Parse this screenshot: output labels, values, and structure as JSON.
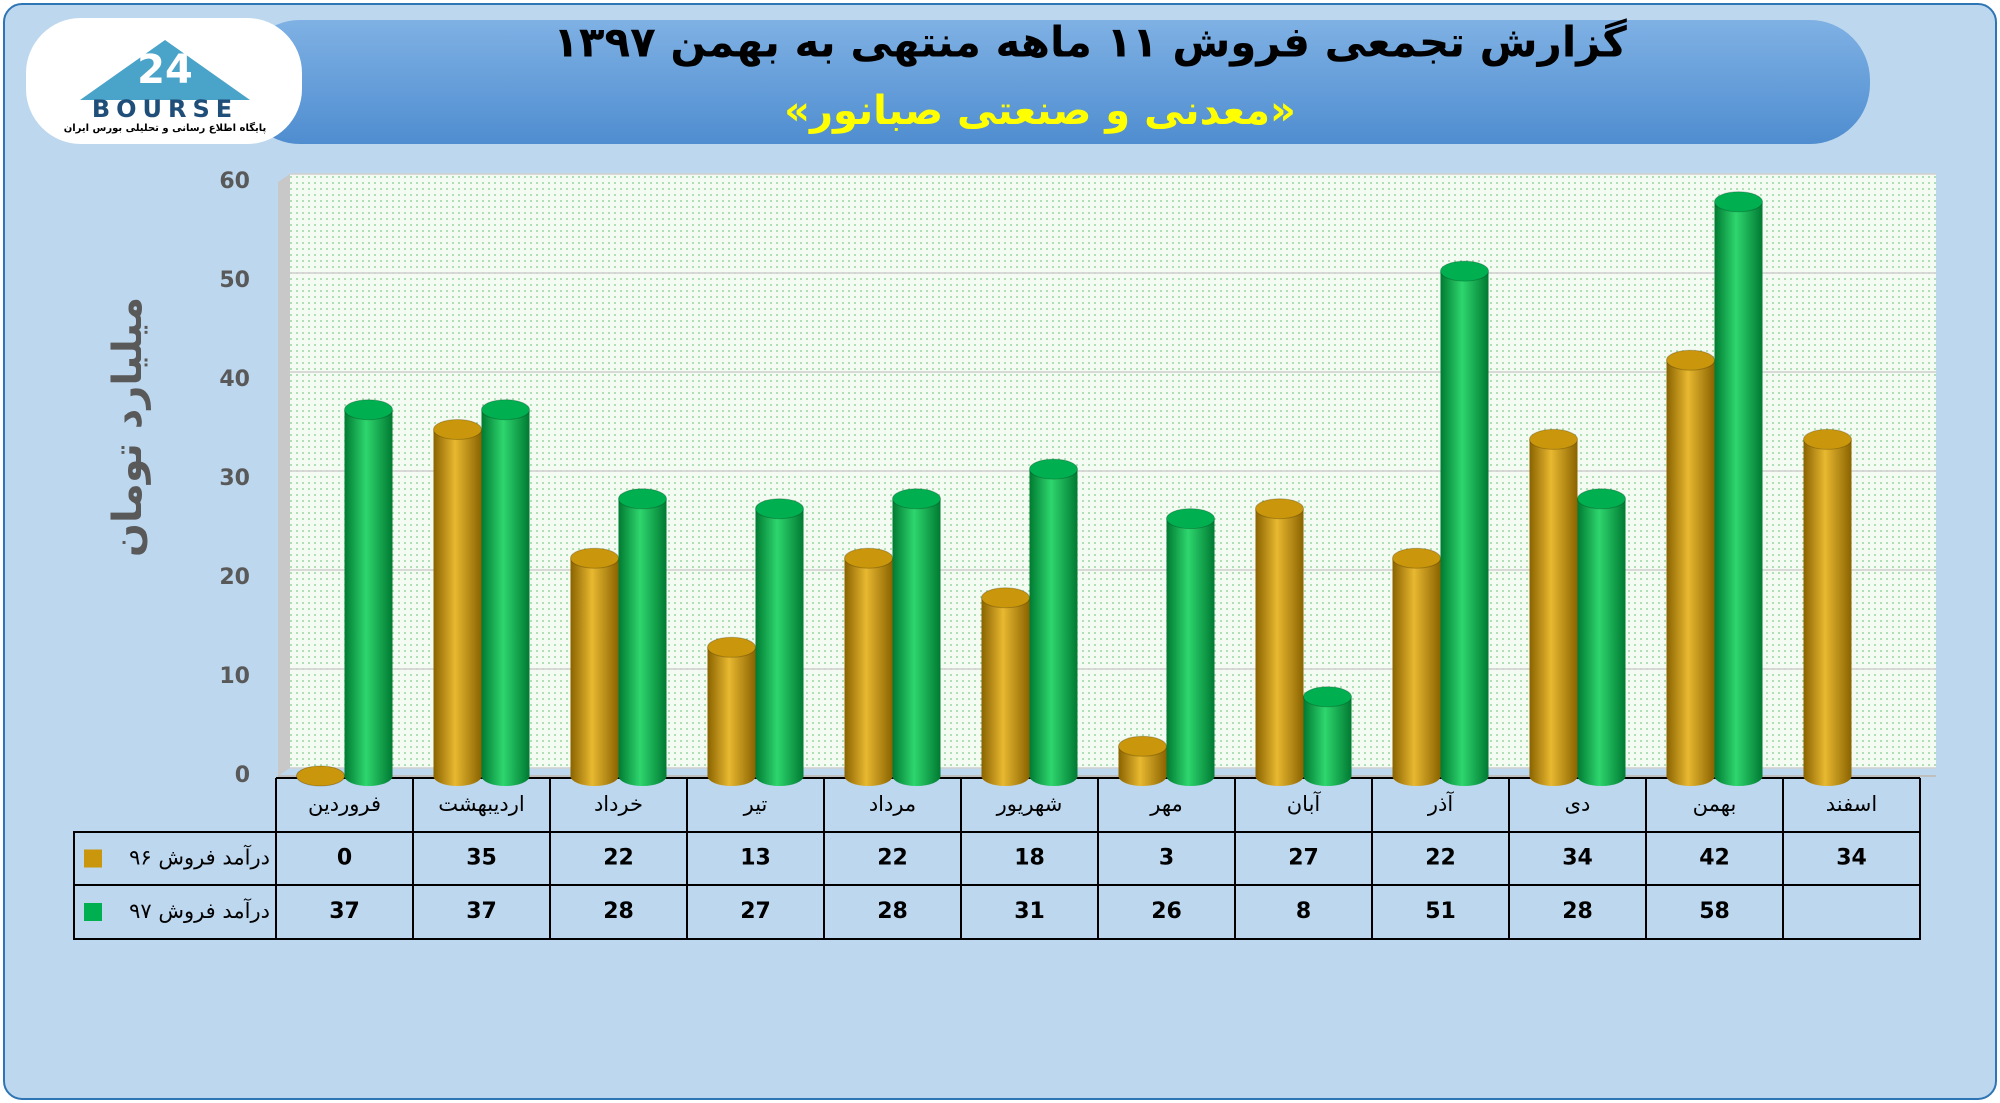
{
  "header": {
    "title": "گزارش تجمعی فروش ۱۱ ماهه منتهی به بهمن ۱۳۹۷",
    "subtitle": "«معدنی و صنعتی صبانور»"
  },
  "logo": {
    "number": "24",
    "name": "BOURSE",
    "tagline": "پایگاه اطلاع رسانی و تحلیلی بورس ایران"
  },
  "chart_data": {
    "type": "bar",
    "y_label": "میلیارد تومان",
    "categories": [
      "فروردین",
      "اردیبهشت",
      "خرداد",
      "تیر",
      "مرداد",
      "شهریور",
      "مهر",
      "آبان",
      "آذر",
      "دی",
      "بهمن",
      "اسفند"
    ],
    "series": [
      {
        "name": "درآمد فروش ۹۶",
        "color": "#c9960c",
        "values": [
          0,
          35,
          22,
          13,
          22,
          18,
          3,
          27,
          22,
          34,
          42,
          34
        ]
      },
      {
        "name": "درآمد فروش ۹۷",
        "color": "#00b050",
        "values": [
          37,
          37,
          28,
          27,
          28,
          31,
          26,
          8,
          51,
          28,
          58,
          null
        ]
      }
    ],
    "ylim": [
      0,
      60
    ],
    "yticks": [
      0,
      10,
      20,
      30,
      40,
      50,
      60
    ],
    "grid": true
  }
}
